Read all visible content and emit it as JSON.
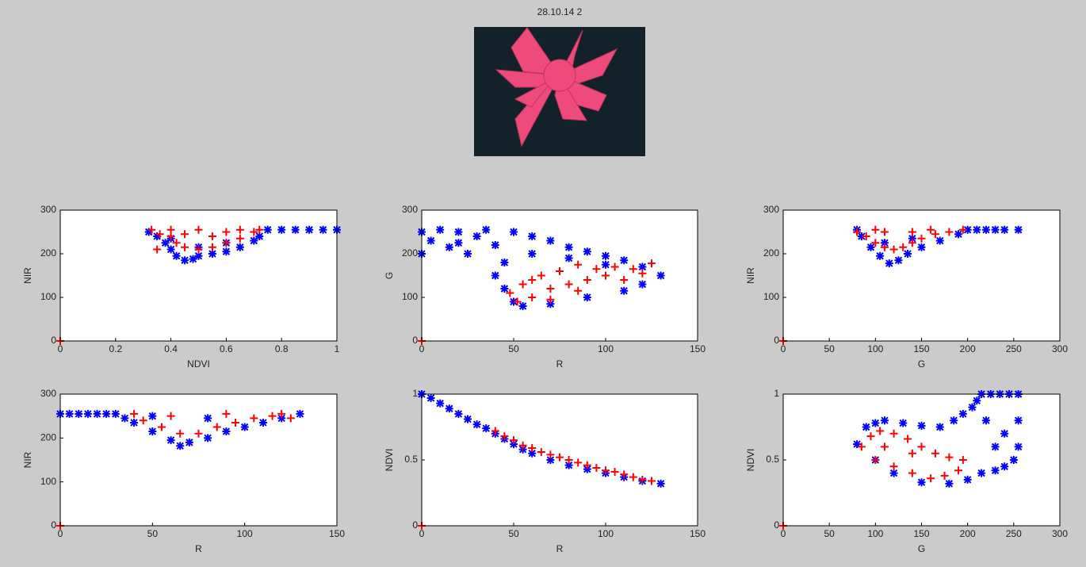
{
  "title": "28.10.14 2",
  "chart_data": [
    {
      "type": "scatter",
      "xlabel": "NDVI",
      "ylabel": "NIR",
      "xlim": [
        0,
        1
      ],
      "ylim": [
        0,
        300
      ],
      "xticks": [
        0,
        0.2,
        0.4,
        0.6,
        0.8,
        1
      ],
      "yticks": [
        0,
        100,
        200,
        300
      ],
      "series": [
        {
          "color": "#0000ff",
          "marker": "star",
          "x": [
            0.32,
            0.35,
            0.38,
            0.4,
            0.42,
            0.45,
            0.48,
            0.5,
            0.55,
            0.6,
            0.65,
            0.7,
            0.72,
            0.4,
            0.5,
            0.6,
            0.75,
            0.8,
            0.85,
            0.9,
            0.95,
            1
          ],
          "y": [
            250,
            240,
            225,
            210,
            195,
            185,
            188,
            195,
            200,
            205,
            215,
            230,
            240,
            235,
            215,
            225,
            255,
            255,
            255,
            255,
            255,
            255
          ]
        },
        {
          "color": "#ff0000",
          "marker": "plus",
          "x": [
            0.33,
            0.36,
            0.4,
            0.42,
            0.45,
            0.5,
            0.55,
            0.6,
            0.65,
            0.7,
            0.72,
            0.45,
            0.55,
            0.6,
            0.5,
            0.4,
            0.65,
            0.35,
            0
          ],
          "y": [
            255,
            245,
            240,
            225,
            215,
            210,
            215,
            225,
            235,
            250,
            255,
            245,
            240,
            250,
            255,
            255,
            255,
            210,
            0
          ]
        }
      ]
    },
    {
      "type": "scatter",
      "xlabel": "R",
      "ylabel": "G",
      "xlim": [
        0,
        150
      ],
      "ylim": [
        0,
        300
      ],
      "xticks": [
        0,
        50,
        100,
        150
      ],
      "yticks": [
        0,
        100,
        200,
        300
      ],
      "series": [
        {
          "color": "#0000ff",
          "marker": "star",
          "x": [
            0,
            0,
            5,
            10,
            15,
            20,
            25,
            30,
            35,
            40,
            45,
            50,
            60,
            70,
            80,
            90,
            100,
            110,
            120,
            130,
            45,
            50,
            55,
            70,
            90,
            110,
            120,
            40,
            60,
            80,
            100,
            20
          ],
          "y": [
            200,
            250,
            230,
            255,
            215,
            250,
            200,
            240,
            255,
            220,
            180,
            250,
            240,
            230,
            215,
            205,
            195,
            185,
            170,
            150,
            120,
            90,
            80,
            85,
            100,
            115,
            130,
            150,
            200,
            190,
            175,
            225
          ]
        },
        {
          "color": "#ff0000",
          "marker": "plus",
          "x": [
            48,
            52,
            55,
            60,
            65,
            70,
            75,
            80,
            85,
            90,
            95,
            100,
            105,
            110,
            115,
            120,
            125,
            60,
            70,
            85,
            0
          ],
          "y": [
            110,
            90,
            130,
            100,
            150,
            120,
            160,
            130,
            175,
            140,
            165,
            150,
            170,
            140,
            165,
            155,
            178,
            140,
            95,
            115,
            0
          ]
        }
      ]
    },
    {
      "type": "scatter",
      "xlabel": "G",
      "ylabel": "NIR",
      "xlim": [
        0,
        300
      ],
      "ylim": [
        0,
        300
      ],
      "xticks": [
        0,
        50,
        100,
        150,
        200,
        250,
        300
      ],
      "yticks": [
        0,
        100,
        200,
        300
      ],
      "series": [
        {
          "color": "#0000ff",
          "marker": "star",
          "x": [
            80,
            85,
            95,
            105,
            115,
            125,
            135,
            150,
            170,
            190,
            200,
            210,
            220,
            230,
            240,
            255,
            110,
            140
          ],
          "y": [
            255,
            240,
            215,
            195,
            178,
            185,
            200,
            215,
            230,
            245,
            255,
            255,
            255,
            255,
            255,
            255,
            225,
            235
          ]
        },
        {
          "color": "#ff0000",
          "marker": "plus",
          "x": [
            80,
            90,
            100,
            110,
            120,
            130,
            140,
            150,
            165,
            180,
            195,
            110,
            140,
            100,
            160,
            0
          ],
          "y": [
            250,
            240,
            225,
            215,
            210,
            215,
            225,
            235,
            245,
            250,
            255,
            250,
            250,
            255,
            255,
            0
          ]
        }
      ]
    },
    {
      "type": "scatter",
      "xlabel": "R",
      "ylabel": "NIR",
      "xlim": [
        0,
        150
      ],
      "ylim": [
        0,
        300
      ],
      "xticks": [
        0,
        50,
        100,
        150
      ],
      "yticks": [
        0,
        100,
        200,
        300
      ],
      "series": [
        {
          "color": "#0000ff",
          "marker": "star",
          "x": [
            0,
            5,
            10,
            15,
            20,
            25,
            30,
            35,
            40,
            50,
            60,
            65,
            70,
            80,
            90,
            100,
            110,
            120,
            130,
            50,
            80
          ],
          "y": [
            255,
            255,
            255,
            255,
            255,
            255,
            255,
            245,
            235,
            215,
            195,
            182,
            190,
            200,
            215,
            225,
            235,
            245,
            255,
            250,
            245
          ]
        },
        {
          "color": "#ff0000",
          "marker": "plus",
          "x": [
            40,
            45,
            55,
            65,
            75,
            85,
            95,
            105,
            115,
            125,
            60,
            90,
            120,
            0
          ],
          "y": [
            255,
            240,
            225,
            210,
            210,
            225,
            235,
            245,
            250,
            245,
            250,
            255,
            255,
            0
          ]
        }
      ]
    },
    {
      "type": "scatter",
      "xlabel": "R",
      "ylabel": "NDVI",
      "xlim": [
        0,
        150
      ],
      "ylim": [
        0,
        1
      ],
      "xticks": [
        0,
        50,
        100,
        150
      ],
      "yticks": [
        0,
        0.5,
        1
      ],
      "series": [
        {
          "color": "#0000ff",
          "marker": "star",
          "x": [
            0,
            5,
            10,
            15,
            20,
            25,
            30,
            35,
            40,
            45,
            50,
            55,
            60,
            70,
            80,
            90,
            100,
            110,
            120,
            130
          ],
          "y": [
            1,
            0.97,
            0.93,
            0.89,
            0.85,
            0.81,
            0.77,
            0.74,
            0.7,
            0.66,
            0.62,
            0.58,
            0.55,
            0.5,
            0.46,
            0.43,
            0.4,
            0.37,
            0.34,
            0.32
          ]
        },
        {
          "color": "#ff0000",
          "marker": "plus",
          "x": [
            40,
            45,
            50,
            55,
            60,
            65,
            70,
            75,
            80,
            85,
            90,
            95,
            100,
            105,
            110,
            115,
            120,
            125,
            0
          ],
          "y": [
            0.72,
            0.68,
            0.65,
            0.61,
            0.59,
            0.56,
            0.54,
            0.52,
            0.5,
            0.48,
            0.46,
            0.44,
            0.42,
            0.41,
            0.39,
            0.37,
            0.35,
            0.34,
            0
          ]
        }
      ]
    },
    {
      "type": "scatter",
      "xlabel": "G",
      "ylabel": "NDVI",
      "xlim": [
        0,
        300
      ],
      "ylim": [
        0,
        1
      ],
      "xticks": [
        0,
        50,
        100,
        150,
        200,
        250,
        300
      ],
      "yticks": [
        0,
        0.5,
        1
      ],
      "series": [
        {
          "color": "#0000ff",
          "marker": "star",
          "x": [
            80,
            90,
            100,
            110,
            130,
            150,
            170,
            185,
            195,
            205,
            210,
            215,
            225,
            235,
            245,
            255,
            255,
            255,
            250,
            240,
            230,
            215,
            200,
            180,
            150,
            120,
            100,
            240,
            220,
            230
          ],
          "y": [
            0.62,
            0.75,
            0.78,
            0.8,
            0.78,
            0.76,
            0.75,
            0.8,
            0.85,
            0.9,
            0.95,
            1,
            1,
            1,
            1,
            1,
            0.8,
            0.6,
            0.5,
            0.45,
            0.42,
            0.4,
            0.35,
            0.32,
            0.33,
            0.4,
            0.5,
            0.7,
            0.8,
            0.6
          ]
        },
        {
          "color": "#ff0000",
          "marker": "plus",
          "x": [
            85,
            95,
            105,
            120,
            135,
            150,
            165,
            180,
            195,
            190,
            175,
            160,
            140,
            120,
            100,
            110,
            140,
            0
          ],
          "y": [
            0.6,
            0.68,
            0.72,
            0.7,
            0.66,
            0.6,
            0.55,
            0.52,
            0.5,
            0.42,
            0.38,
            0.36,
            0.4,
            0.45,
            0.5,
            0.6,
            0.55,
            0
          ]
        }
      ]
    }
  ]
}
